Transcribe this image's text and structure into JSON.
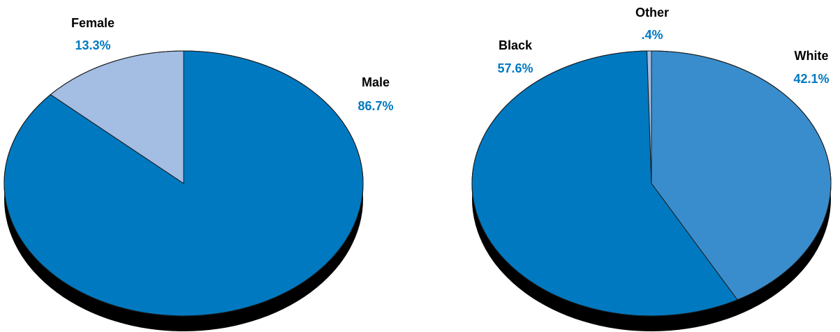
{
  "colors": {
    "shadow": "#000000",
    "outline": "#1a1a1a",
    "label_value": "#0079c1"
  },
  "chart_data": [
    {
      "type": "pie",
      "title": "",
      "slices": [
        {
          "label": "Male",
          "value": 86.7,
          "display": "86.7%",
          "color": "#0079c1"
        },
        {
          "label": "Female",
          "value": 13.3,
          "display": "13.3%",
          "color": "#a3bde3"
        }
      ]
    },
    {
      "type": "pie",
      "title": "",
      "slices": [
        {
          "label": "White",
          "value": 42.1,
          "display": "42.1%",
          "color": "#3a8dcc"
        },
        {
          "label": "Black",
          "value": 57.6,
          "display": "57.6%",
          "color": "#0079c1"
        },
        {
          "label": "Other",
          "value": 0.4,
          "display": ".4%",
          "color": "#a3bde3"
        }
      ]
    }
  ]
}
